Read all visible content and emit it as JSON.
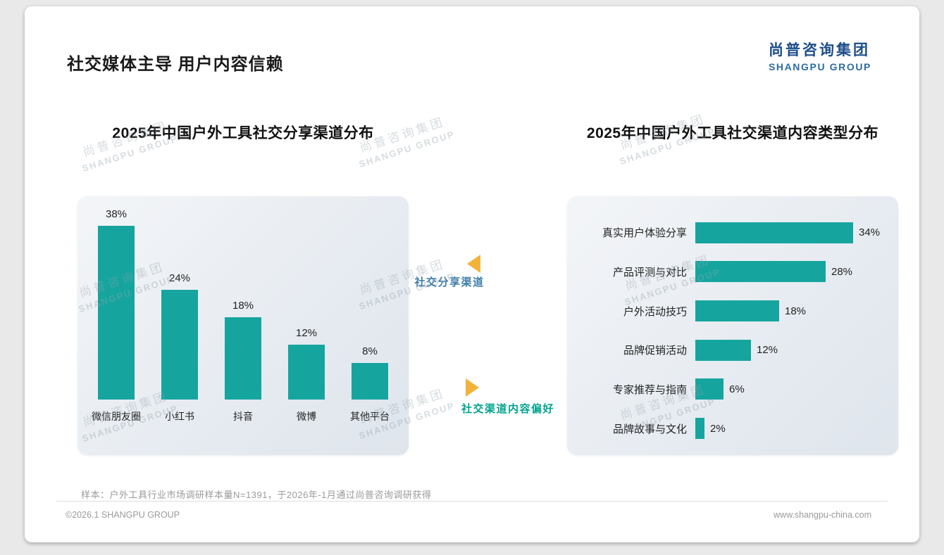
{
  "page": {
    "title": "社交媒体主导 用户内容信赖",
    "logo": {
      "cn": "尚普咨询集团",
      "en": "SHANGPU GROUP"
    },
    "watermark": {
      "cn": "尚普咨询集团",
      "en": "SHANGPU GROUP"
    },
    "footer": {
      "sample_note": "样本：户外工具行业市场调研样本量N=1391，于2026年-1月通过尚普咨询调研获得",
      "copyright": "©2026.1 SHANGPU GROUP",
      "website": "www.shangpu-china.com"
    }
  },
  "annotations": {
    "left_pointer_label": "社交分享渠道",
    "right_pointer_label": "社交渠道内容偏好"
  },
  "colors": {
    "accent_teal": "#16a59e",
    "pointer_yellow": "#f2b33c",
    "annotation_blue": "#3f7ea8",
    "annotation_teal": "#00a48e",
    "logo_navy": "#1d4e89",
    "logo_blue": "#2d6ca2"
  },
  "chart_data": [
    {
      "type": "bar",
      "orientation": "vertical",
      "title": "2025年中国户外工具社交分享渠道分布",
      "categories": [
        "微信朋友圈",
        "小红书",
        "抖音",
        "微博",
        "其他平台"
      ],
      "values": [
        38,
        24,
        18,
        12,
        8
      ],
      "unit": "%",
      "bar_color": "#16a59e",
      "ylim": [
        0,
        40
      ],
      "grid": false,
      "legend": "none",
      "data_labels": "above bars"
    },
    {
      "type": "bar",
      "orientation": "horizontal",
      "title": "2025年中国户外工具社交渠道内容类型分布",
      "categories": [
        "真实用户体验分享",
        "产品评测与对比",
        "户外活动技巧",
        "品牌促销活动",
        "专家推荐与指南",
        "品牌故事与文化"
      ],
      "values": [
        34,
        28,
        18,
        12,
        6,
        2
      ],
      "unit": "%",
      "bar_color": "#16a59e",
      "xlim": [
        0,
        40
      ],
      "grid": false,
      "legend": "none",
      "data_labels": "right of bars"
    }
  ]
}
